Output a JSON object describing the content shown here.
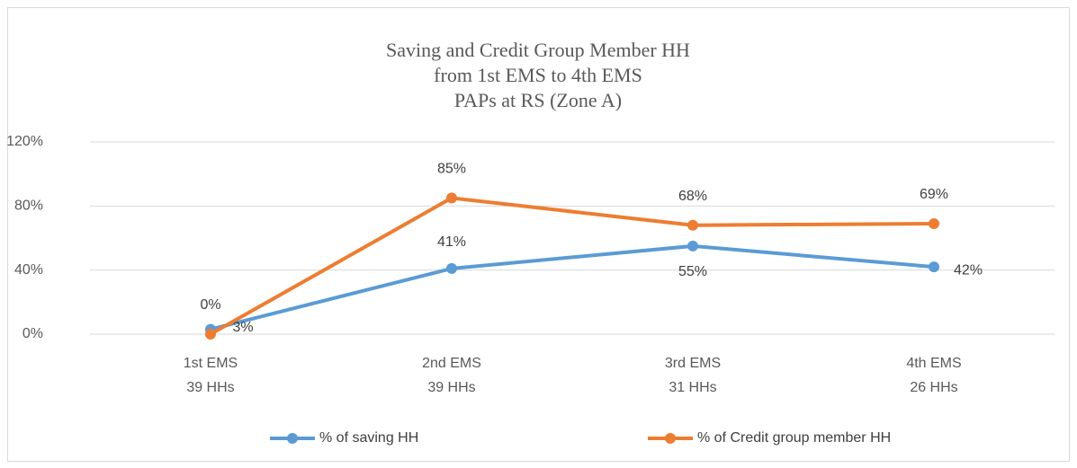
{
  "chart_data": {
    "type": "line",
    "title": [
      "Saving and Credit Group Member HH",
      "from 1st EMS to 4th EMS",
      "PAPs at RS (Zone A)"
    ],
    "categories": [
      [
        "1st EMS",
        "39 HHs"
      ],
      [
        "2nd EMS",
        "39 HHs"
      ],
      [
        "3rd EMS",
        "31 HHs"
      ],
      [
        "4th EMS",
        "26 HHs"
      ]
    ],
    "series": [
      {
        "name": "% of saving HH",
        "color": "#5b9bd5",
        "values": [
          3,
          41,
          55,
          42
        ],
        "value_labels": [
          "3%",
          "41%",
          "55%",
          "42%"
        ]
      },
      {
        "name": "% of Credit group member HH",
        "color": "#ed7d31",
        "values": [
          0,
          85,
          68,
          69
        ],
        "value_labels": [
          "0%",
          "85%",
          "68%",
          "69%"
        ]
      }
    ],
    "ylim": [
      0,
      120
    ],
    "yticks": [
      {
        "value": 0,
        "label": "0%"
      },
      {
        "value": 40,
        "label": "40%"
      },
      {
        "value": 80,
        "label": "80%"
      },
      {
        "value": 120,
        "label": "120%"
      }
    ],
    "grid": true,
    "legend": "bottom"
  }
}
